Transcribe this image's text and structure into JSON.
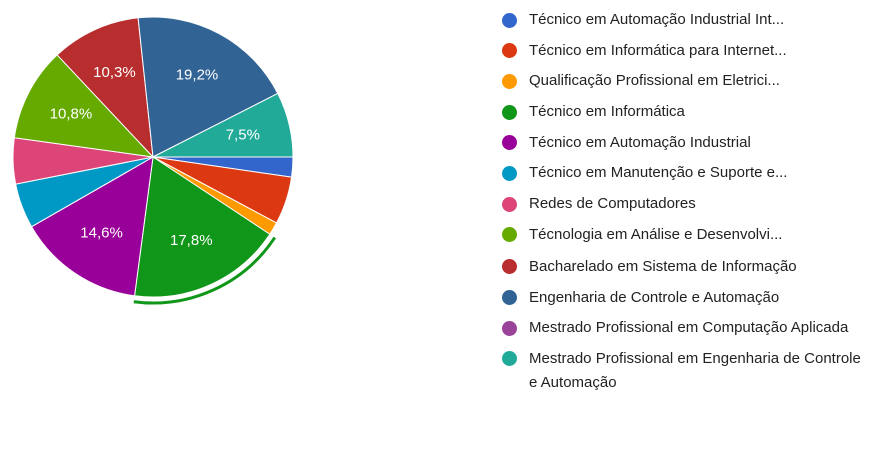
{
  "chart_data": {
    "type": "pie",
    "categories": [
      "Técnico em Automação Industrial Int...",
      "Técnico em Informática para Internet...",
      "Qualificação Profissional em Eletrici...",
      "Técnico em Informática",
      "Técnico em Automação Industrial",
      "Técnico em Manutenção e Suporte e...",
      "Redes de Computadores",
      "Técnologia em Análise e Desenvolvi...",
      "Bacharelado em Sistema de Informação",
      "Engenharia de Controle e Automação",
      "Mestrado Profissional em Computação Aplicada",
      "Mestrado Profissional em Engenharia de Controle e Automação"
    ],
    "values": [
      2.3,
      5.5,
      1.5,
      17.8,
      14.6,
      5.2,
      5.3,
      10.8,
      10.3,
      19.2,
      0,
      7.5
    ],
    "value_labels": [
      null,
      null,
      null,
      "17,8%",
      "14,6%",
      null,
      null,
      "10,8%",
      "10,3%",
      "19,2%",
      null,
      "7,5%"
    ],
    "colors": [
      "#3366cc",
      "#dc3912",
      "#ff9900",
      "#109618",
      "#990099",
      "#0099c6",
      "#dd4477",
      "#66aa00",
      "#b82e2e",
      "#316395",
      "#994499",
      "#22aa99"
    ],
    "highlighted": 3,
    "legend": "right"
  }
}
